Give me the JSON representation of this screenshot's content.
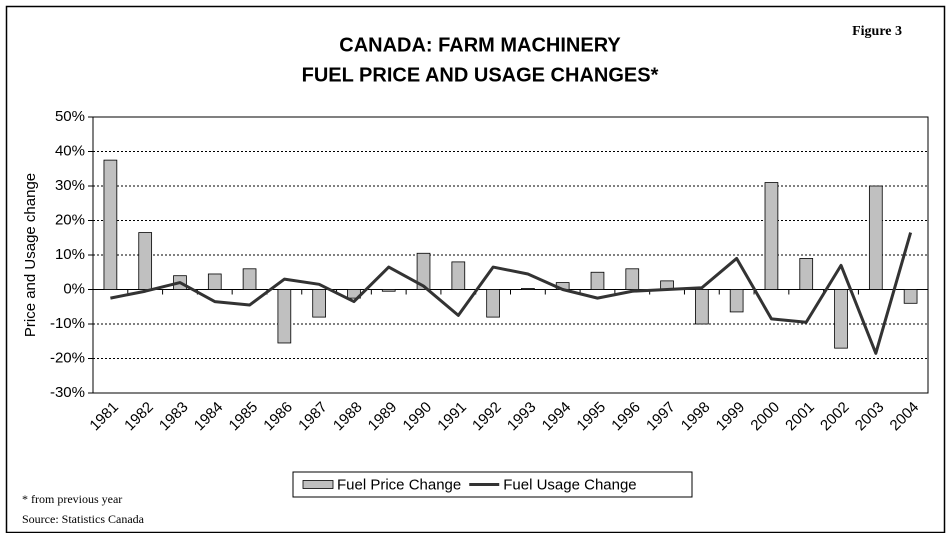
{
  "chart_data": {
    "type": "bar",
    "title": [
      "CANADA: FARM MACHINERY",
      "FUEL PRICE AND USAGE CHANGES*"
    ],
    "annotations": [
      "Figure 3",
      "* from previous year",
      "Source: Statistics Canada"
    ],
    "y_label": "Price and Usage change",
    "categories": [
      "1981",
      "1982",
      "1983",
      "1984",
      "1985",
      "1986",
      "1987",
      "1988",
      "1989",
      "1990",
      "1991",
      "1992",
      "1993",
      "1994",
      "1995",
      "1996",
      "1997",
      "1998",
      "1999",
      "2000",
      "2001",
      "2002",
      "2003",
      "2004"
    ],
    "series": [
      {
        "name": "Fuel Price Change",
        "type": "bar",
        "color": "#c0c0c0",
        "values": [
          37.5,
          16.5,
          4,
          4.5,
          6,
          -15.5,
          -8,
          -2.5,
          -0.5,
          10.5,
          8,
          -8,
          0.3,
          2,
          5,
          6,
          2.5,
          -10,
          -6.5,
          31,
          9,
          -17,
          30,
          -4
        ]
      },
      {
        "name": "Fuel Usage Change",
        "type": "line",
        "color": "#333333",
        "values": [
          -2.5,
          -0.5,
          2,
          -3.5,
          -4.5,
          3,
          1.5,
          -3.5,
          6.5,
          1,
          -7.5,
          6.5,
          4.5,
          0,
          -2.5,
          -0.5,
          0,
          0.5,
          9,
          -8.5,
          -9.5,
          7,
          -18.5,
          16.5
        ]
      }
    ],
    "ylim": [
      -30,
      50
    ],
    "yticks": [
      {
        "value": -30,
        "label": "-30%"
      },
      {
        "value": -20,
        "label": "-20%"
      },
      {
        "value": -10,
        "label": "-10%"
      },
      {
        "value": 0,
        "label": "0%"
      },
      {
        "value": 10,
        "label": "10%"
      },
      {
        "value": 20,
        "label": "20%"
      },
      {
        "value": 30,
        "label": "30%"
      },
      {
        "value": 40,
        "label": "40%"
      },
      {
        "value": 50,
        "label": "50%"
      }
    ],
    "grid": true,
    "legend": "bottom"
  }
}
